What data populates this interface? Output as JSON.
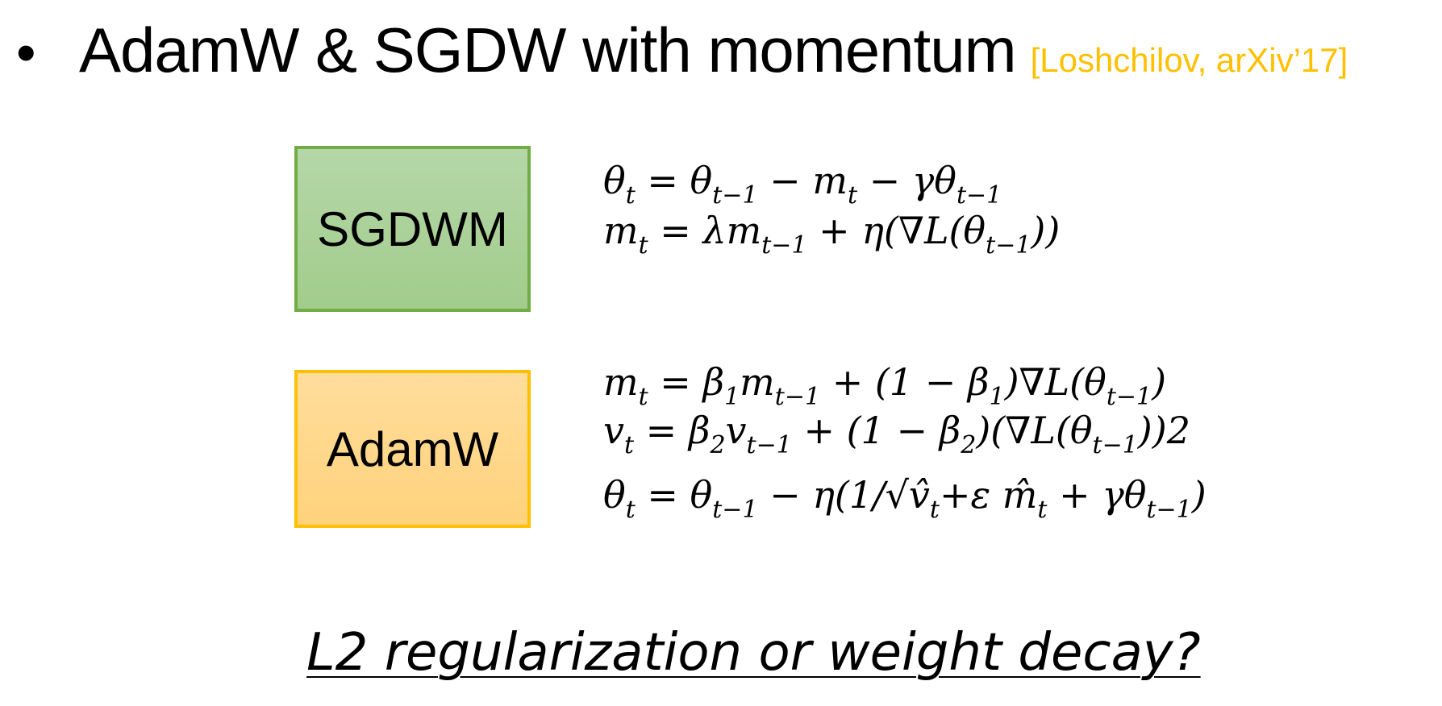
{
  "slide": {
    "bullet": "•",
    "title": "AdamW & SGDW with momentum",
    "citation": "[Loshchilov, arXiv’17]",
    "citation_color": "#ffc000"
  },
  "algorithms": {
    "sgdwm": {
      "label": "SGDWM",
      "border_color": "#70ad47",
      "fill_color": "#a9d18e",
      "equations": [
        "θt = θt−1 − mt − γθt−1",
        "mt = λmt−1 + η(∇L(θt−1))"
      ]
    },
    "adamw": {
      "label": "AdamW",
      "border_color": "#ffc000",
      "fill_color": "#ffd966",
      "equations": [
        "mt = β1mt−1 + (1 − β1)∇L(θt−1)",
        "vt = β2vt−1 + (1 − β2)(∇L(θt−1))2",
        "θt = θt−1 − η(1/√v̂t+ε m̂t + γθt−1)"
      ]
    }
  },
  "question": "L2 regularization or weight decay?"
}
